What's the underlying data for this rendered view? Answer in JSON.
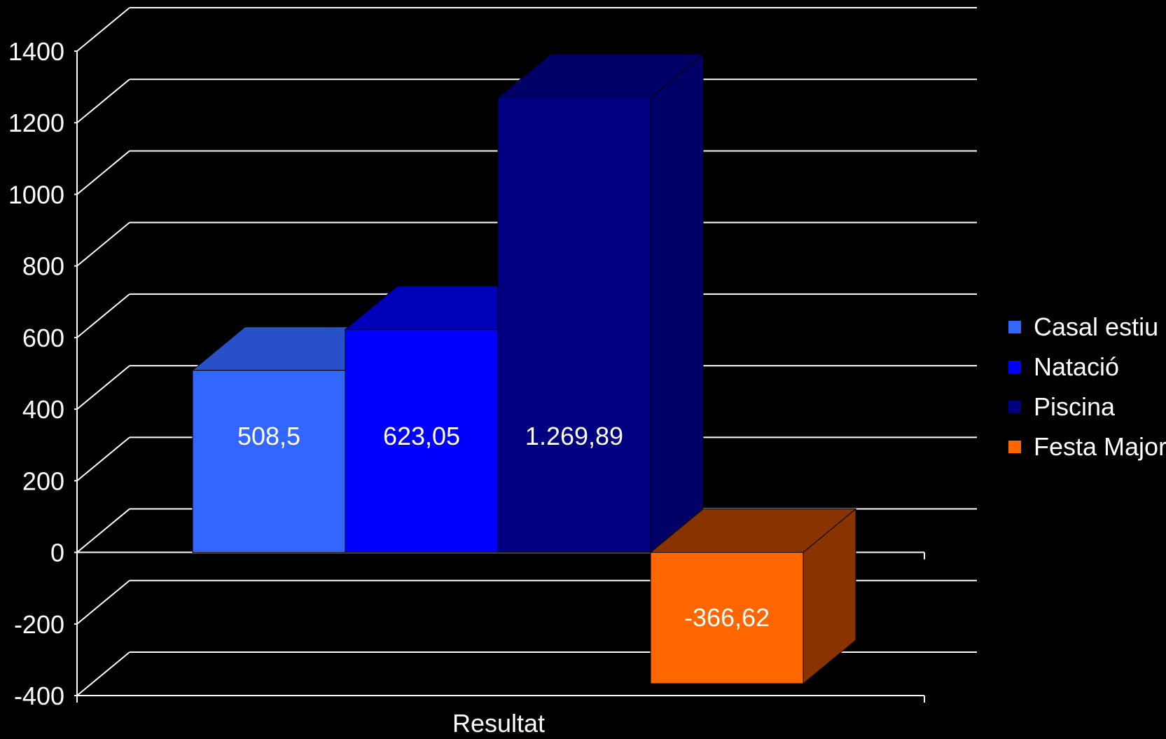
{
  "chart_data": {
    "type": "bar",
    "categories": [
      "Resultat"
    ],
    "series": [
      {
        "name": "Casal estiu",
        "values": [
          508.5
        ],
        "label": "508,5",
        "color": "#3366FF",
        "top_color": "#2850C8"
      },
      {
        "name": "Natació",
        "values": [
          623.05
        ],
        "label": "623,05",
        "color": "#0000FF",
        "top_color": "#0000BB"
      },
      {
        "name": "Piscina",
        "values": [
          1269.89
        ],
        "label": "1.269,89",
        "color": "#000080",
        "top_color": "#000066"
      },
      {
        "name": "Festa Major",
        "values": [
          -366.62
        ],
        "label": "-366,62",
        "color": "#FF6600",
        "top_color": "#883300"
      }
    ],
    "ylim": [
      -400,
      1400
    ],
    "yticks": [
      -400,
      -200,
      0,
      200,
      400,
      600,
      800,
      1000,
      1200,
      1400
    ],
    "grid": true,
    "three_d": true,
    "legend_position": "right",
    "background": "#000000"
  }
}
